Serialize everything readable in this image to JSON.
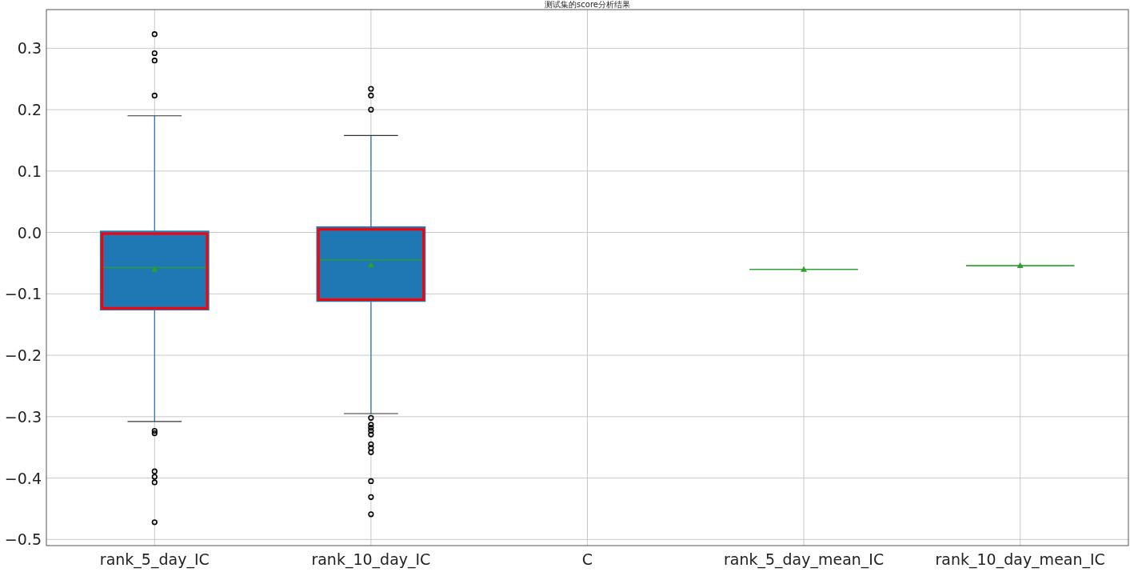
{
  "chart_data": {
    "type": "box",
    "title": "测试集的score分析结果",
    "categories": [
      "rank_5_day_IC",
      "rank_10_day_IC",
      "C",
      "rank_5_day_mean_IC",
      "rank_10_day_mean_IC"
    ],
    "series": [
      {
        "colors": [
          "#1f77b4",
          "#1f77b4",
          null,
          "#2ca02c",
          "#2ca02c"
        ],
        "boxes": [
          {
            "low": -0.308,
            "q1": -0.126,
            "median": -0.057,
            "q3": 0.002,
            "high": 0.19,
            "mean": -0.06,
            "outliers": [
              0.323,
              0.292,
              0.28,
              0.223,
              -0.323,
              -0.327,
              -0.389,
              -0.398,
              -0.407,
              -0.472
            ]
          },
          {
            "low": -0.295,
            "q1": -0.112,
            "median": -0.045,
            "q3": 0.009,
            "high": 0.158,
            "mean": -0.053,
            "outliers": [
              0.234,
              0.223,
              0.2,
              -0.302,
              -0.313,
              -0.318,
              -0.323,
              -0.329,
              -0.345,
              -0.351,
              -0.358,
              -0.405,
              -0.431,
              -0.459
            ]
          },
          null,
          {
            "low": -0.06,
            "q1": -0.06,
            "median": -0.06,
            "q3": -0.06,
            "high": -0.06,
            "mean": -0.06
          },
          {
            "low": -0.054,
            "q1": -0.054,
            "median": -0.054,
            "q3": -0.054,
            "high": -0.054,
            "mean": -0.054
          }
        ]
      }
    ],
    "ylim": [
      -0.51,
      0.363
    ],
    "yticks": [
      {
        "value": 0.3,
        "label": "0.3"
      },
      {
        "value": 0.2,
        "label": "0.2"
      },
      {
        "value": 0.1,
        "label": "0.1"
      },
      {
        "value": 0,
        "label": "0.0"
      },
      {
        "value": -0.1,
        "label": "−0.1"
      },
      {
        "value": -0.2,
        "label": "−0.2"
      },
      {
        "value": -0.3,
        "label": "−0.3"
      },
      {
        "value": -0.4,
        "label": "−0.4"
      },
      {
        "value": -0.5,
        "label": "−0.5"
      }
    ],
    "grid": true
  }
}
